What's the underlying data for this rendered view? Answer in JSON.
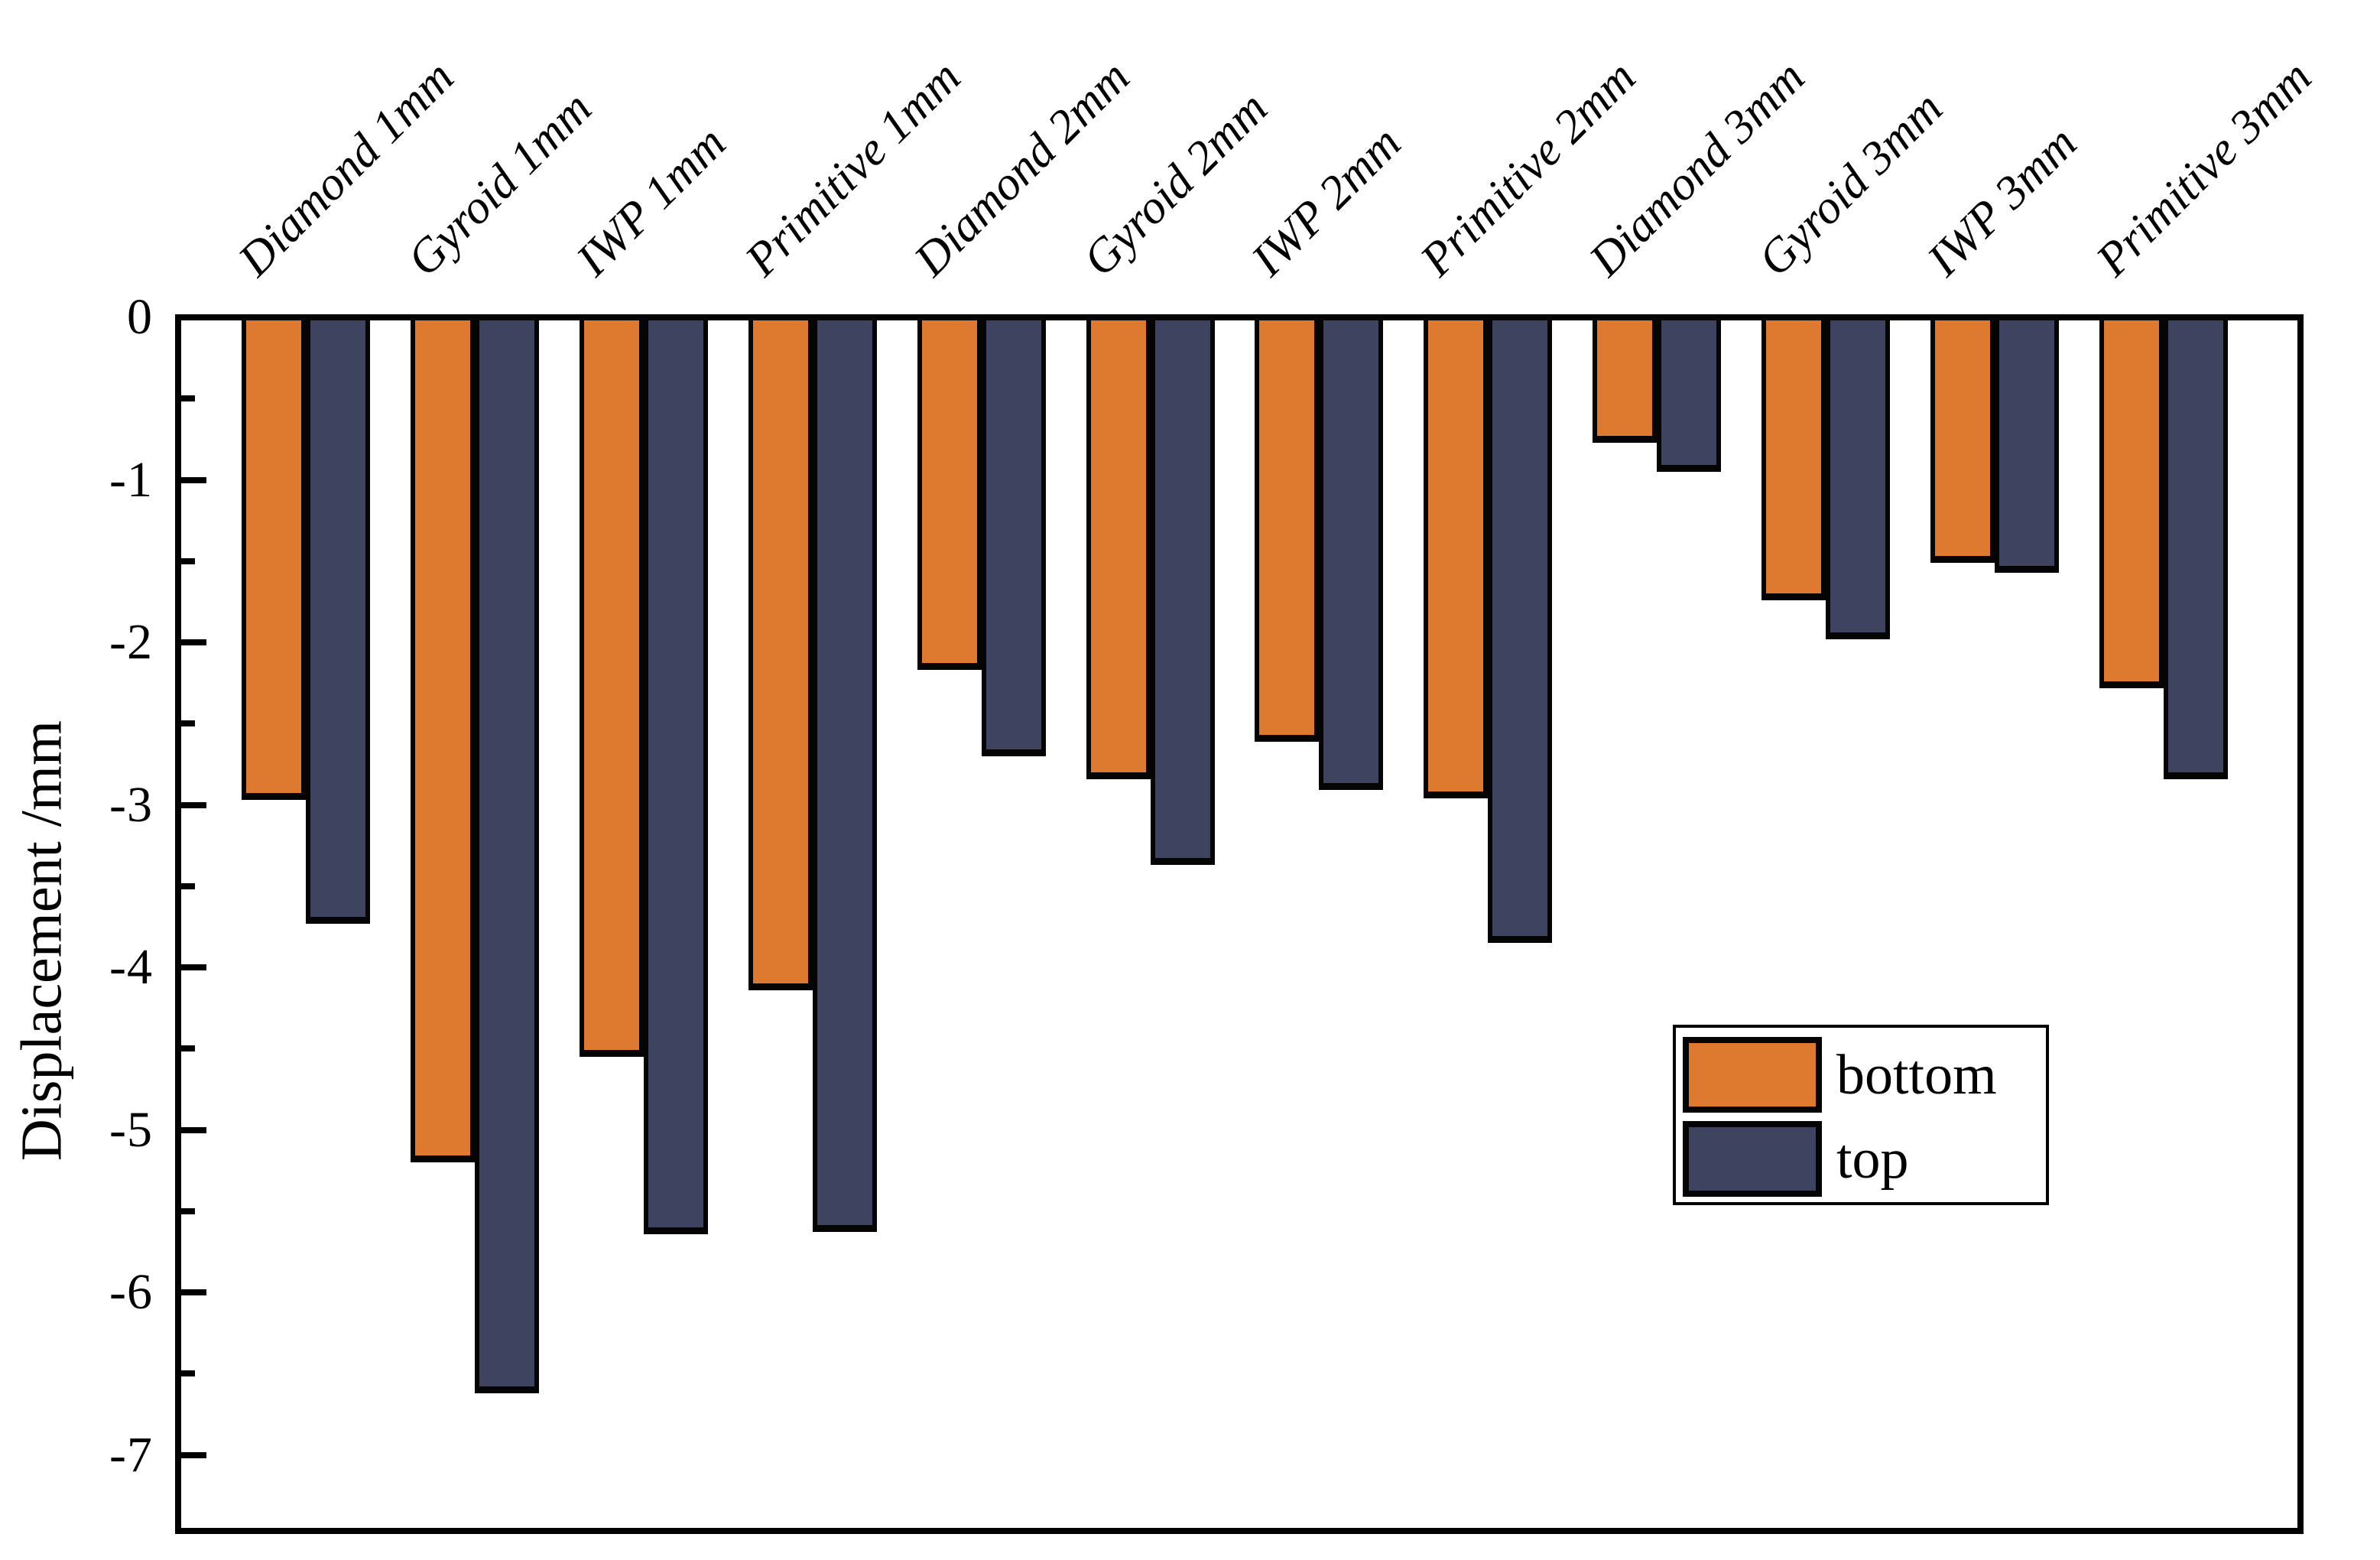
{
  "y_axis": {
    "label": "Displacement /mm",
    "tick_labels": [
      "0",
      "-1",
      "-2",
      "-3",
      "-4",
      "-5",
      "-6",
      "-7"
    ],
    "tick_values": [
      0,
      -1,
      -2,
      -3,
      -4,
      -5,
      -6,
      -7
    ],
    "minor_tick_values": [
      -0.5,
      -1.5,
      -2.5,
      -3.5,
      -4.5,
      -5.5,
      -6.5
    ]
  },
  "legend": {
    "items": [
      {
        "label": "bottom",
        "color": "#dd7a30"
      },
      {
        "label": "top",
        "color": "#3e4360"
      }
    ]
  },
  "colors": {
    "bottom_series": "#dd7a30",
    "top_series": "#3e4360",
    "axis": "#000000",
    "background": "#ffffff"
  },
  "chart_data": {
    "type": "bar",
    "orientation": "vertical-negative",
    "title": "",
    "xlabel": "",
    "ylabel": "Displacement /mm",
    "ylim": [
      -7.5,
      0
    ],
    "grid": false,
    "legend_position": "center-right",
    "categories": [
      "Diamond 1mm",
      "Gyroid 1mm",
      "IWP 1mm",
      "Primitive 1mm",
      "Diamond 2mm",
      "Gyroid 2mm",
      "IWP 2mm",
      "Primitive 2mm",
      "Diamond 3mm",
      "Gyroid 3mm",
      "IWP 3mm",
      "Primitive 3mm"
    ],
    "series": [
      {
        "name": "bottom",
        "values": [
          -2.97,
          -5.2,
          -4.55,
          -4.14,
          -2.17,
          -2.84,
          -2.61,
          -2.96,
          -0.77,
          -1.74,
          -1.51,
          -2.28
        ]
      },
      {
        "name": "top",
        "values": [
          -3.73,
          -6.62,
          -5.64,
          -5.63,
          -2.7,
          -3.37,
          -2.91,
          -3.85,
          -0.95,
          -1.98,
          -1.57,
          -2.84
        ]
      }
    ]
  }
}
